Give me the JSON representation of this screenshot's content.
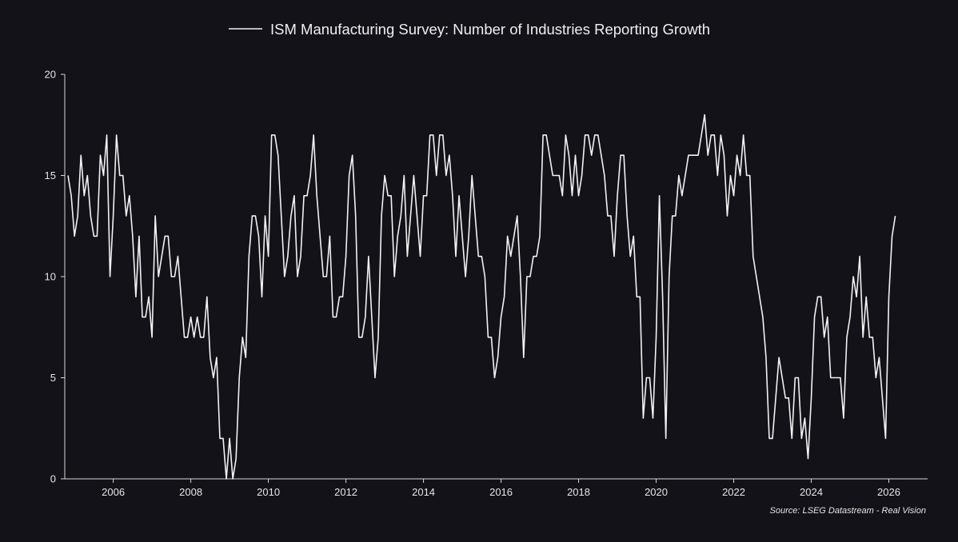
{
  "chart_data": {
    "type": "line",
    "title": "",
    "xlabel": "",
    "ylabel": "",
    "legend_position": "top-center",
    "grid": false,
    "source": "Source: LSEG Datastream - Real Vision",
    "x_start": "2004-11",
    "x_frequency": "monthly",
    "xlim": [
      "2004-10",
      "2027-01"
    ],
    "ylim": [
      0,
      20
    ],
    "y_ticks": [
      0,
      5,
      10,
      15,
      20
    ],
    "x_ticks": [
      "2006",
      "2008",
      "2010",
      "2012",
      "2014",
      "2016",
      "2018",
      "2020",
      "2022",
      "2024",
      "2026"
    ],
    "colors": {
      "background": "#121218",
      "line": "#f2f2f2",
      "axis": "#d8d8d8",
      "text": "#e6e6e6"
    },
    "series": [
      {
        "name": "ISM Manufacturing Survey:  Number of Industries Reporting Growth",
        "values": [
          15,
          14,
          12,
          13,
          16,
          14,
          15,
          13,
          12,
          12,
          16,
          15,
          17,
          10,
          13,
          17,
          15,
          15,
          13,
          14,
          12,
          9,
          12,
          8,
          8,
          9,
          7,
          13,
          10,
          11,
          12,
          12,
          10,
          10,
          11,
          9,
          7,
          7,
          8,
          7,
          8,
          7,
          7,
          9,
          6,
          5,
          6,
          2,
          2,
          0,
          2,
          0,
          1,
          5,
          7,
          6,
          11,
          13,
          13,
          12,
          9,
          13,
          11,
          17,
          17,
          16,
          13,
          10,
          11,
          13,
          14,
          10,
          11,
          14,
          14,
          15,
          17,
          14,
          12,
          10,
          10,
          12,
          8,
          8,
          9,
          9,
          11,
          15,
          16,
          13,
          7,
          7,
          8,
          11,
          8,
          5,
          7,
          13,
          15,
          14,
          14,
          10,
          12,
          13,
          15,
          11,
          13,
          15,
          13,
          11,
          14,
          14,
          17,
          17,
          15,
          17,
          17,
          15,
          16,
          14,
          11,
          14,
          12,
          10,
          12,
          15,
          13,
          11,
          11,
          10,
          7,
          7,
          5,
          6,
          8,
          9,
          12,
          11,
          12,
          13,
          10,
          6,
          10,
          10,
          11,
          11,
          12,
          17,
          17,
          16,
          15,
          15,
          15,
          14,
          17,
          16,
          14,
          16,
          14,
          15,
          17,
          17,
          16,
          17,
          17,
          16,
          15,
          13,
          13,
          11,
          14,
          16,
          16,
          13,
          11,
          12,
          9,
          9,
          3,
          5,
          5,
          3,
          7,
          14,
          9,
          2,
          10,
          13,
          13,
          15,
          14,
          15,
          16,
          16,
          16,
          16,
          17,
          18,
          16,
          17,
          17,
          15,
          17,
          16,
          13,
          15,
          14,
          16,
          15,
          17,
          15,
          15,
          11,
          10,
          9,
          8,
          6,
          2,
          2,
          4,
          6,
          5,
          4,
          4,
          2,
          5,
          5,
          2,
          3,
          1,
          4,
          8,
          9,
          9,
          7,
          8,
          5,
          5,
          5,
          5,
          3,
          7,
          8,
          10,
          9,
          11,
          7,
          9,
          7,
          7,
          5,
          6,
          4,
          2,
          9,
          12,
          13
        ]
      }
    ]
  }
}
